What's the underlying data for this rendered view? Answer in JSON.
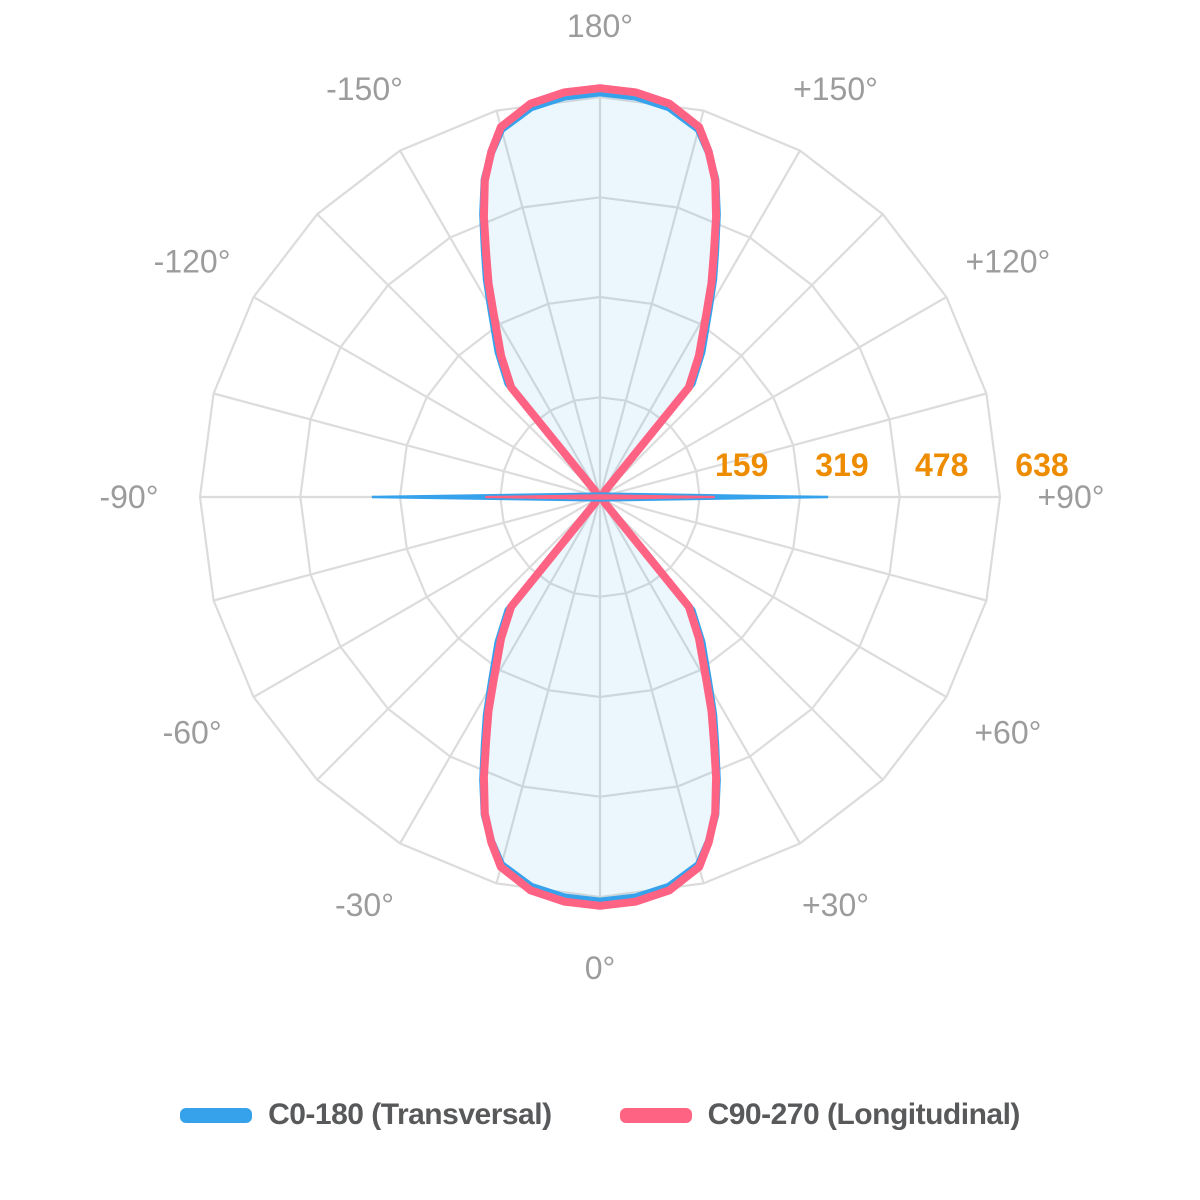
{
  "chart_data": {
    "type": "polar",
    "description": "Photometric polar luminous intensity distribution with two C-planes",
    "angular_axis": {
      "grid_step_deg": 15,
      "label_step_deg": 30,
      "labels": [
        {
          "deg": 0,
          "text": "0°"
        },
        {
          "deg": 30,
          "text": "+30°"
        },
        {
          "deg": 60,
          "text": "+60°"
        },
        {
          "deg": 90,
          "text": "+90°"
        },
        {
          "deg": 120,
          "text": "+120°"
        },
        {
          "deg": 150,
          "text": "+150°"
        },
        {
          "deg": 180,
          "text": "180°"
        },
        {
          "deg": -150,
          "text": "-150°"
        },
        {
          "deg": -120,
          "text": "-120°"
        },
        {
          "deg": -90,
          "text": "-90°"
        },
        {
          "deg": -60,
          "text": "-60°"
        },
        {
          "deg": -30,
          "text": "-30°"
        }
      ],
      "label_color": "#9C9C9C"
    },
    "radial_axis": {
      "max": 638,
      "ticks": [
        {
          "value": 159,
          "text": "159"
        },
        {
          "value": 319,
          "text": "319"
        },
        {
          "value": 478,
          "text": "478"
        },
        {
          "value": 638,
          "text": "638"
        }
      ],
      "tick_color": "#EE8C00"
    },
    "grid": {
      "color": "#DCDCDC",
      "width": 2.2
    },
    "area_fill": "rgba(54,162,235,0.10)",
    "series": [
      {
        "id": "c0_180",
        "name": "C0-180 (Transversal)",
        "color": "#36A2EB",
        "symmetry": "quadrant-mirror",
        "profile_deg_value": [
          [
            0,
            645
          ],
          [
            5,
            641
          ],
          [
            10,
            631
          ],
          [
            15,
            607
          ],
          [
            17.5,
            576
          ],
          [
            20,
            539
          ],
          [
            22.5,
            488
          ],
          [
            25,
            436
          ],
          [
            27.5,
            392
          ],
          [
            30,
            348
          ],
          [
            35,
            283
          ],
          [
            39,
            233
          ],
          [
            40,
            14
          ],
          [
            45,
            9
          ],
          [
            60,
            7
          ],
          [
            75,
            6
          ],
          [
            85,
            7
          ],
          [
            88.5,
            12
          ],
          [
            90,
            364
          ]
        ]
      },
      {
        "id": "c90_270",
        "name": "C90-270 (Longitudinal)",
        "color": "#FF6384",
        "symmetry": "quadrant-mirror",
        "profile_deg_value": [
          [
            0,
            652
          ],
          [
            5,
            648
          ],
          [
            10,
            637
          ],
          [
            15,
            611
          ],
          [
            17.5,
            577
          ],
          [
            20,
            537
          ],
          [
            22.5,
            484
          ],
          [
            25,
            430
          ],
          [
            27.5,
            385
          ],
          [
            30,
            340
          ],
          [
            35,
            275
          ],
          [
            39,
            225
          ],
          [
            40,
            12
          ],
          [
            45,
            8
          ],
          [
            60,
            6
          ],
          [
            75,
            5
          ],
          [
            85,
            6
          ],
          [
            88.5,
            10
          ],
          [
            90,
            183
          ]
        ]
      }
    ]
  },
  "legend": {
    "items": [
      {
        "label": "C0-180 (Transversal)",
        "color": "#36A2EB"
      },
      {
        "label": "C90-270 (Longitudinal)",
        "color": "#FF6384"
      }
    ]
  }
}
